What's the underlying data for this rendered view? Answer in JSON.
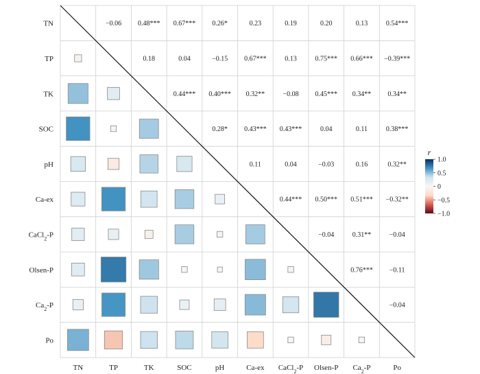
{
  "chart_data": {
    "type": "heatmap",
    "subtype": "correlation-matrix",
    "title": "",
    "variables": [
      "TN",
      "TP",
      "TK",
      "SOC",
      "pH",
      "Ca-ex",
      "CaCl2-P",
      "Olsen-P",
      "Ca2-P",
      "Po"
    ],
    "variable_labels": [
      {
        "base": "TN",
        "sub": "",
        "tail": ""
      },
      {
        "base": "TP",
        "sub": "",
        "tail": ""
      },
      {
        "base": "TK",
        "sub": "",
        "tail": ""
      },
      {
        "base": "SOC",
        "sub": "",
        "tail": ""
      },
      {
        "base": "pH",
        "sub": "",
        "tail": ""
      },
      {
        "base": "Ca-ex",
        "sub": "",
        "tail": ""
      },
      {
        "base": "CaCl",
        "sub": "2",
        "tail": "-P"
      },
      {
        "base": "Olsen-P",
        "sub": "",
        "tail": ""
      },
      {
        "base": "Ca",
        "sub": "2",
        "tail": "-P"
      },
      {
        "base": "Po",
        "sub": "",
        "tail": ""
      }
    ],
    "matrix": [
      [
        1,
        -0.06,
        0.48,
        0.67,
        0.26,
        0.23,
        0.19,
        0.2,
        0.13,
        0.54
      ],
      [
        -0.06,
        1,
        0.18,
        0.04,
        -0.15,
        0.67,
        0.13,
        0.75,
        0.66,
        -0.39
      ],
      [
        0.48,
        0.18,
        1,
        0.44,
        0.4,
        0.32,
        -0.08,
        0.45,
        0.34,
        0.34
      ],
      [
        0.67,
        0.04,
        0.44,
        1,
        0.28,
        0.43,
        0.43,
        0.04,
        0.11,
        0.38
      ],
      [
        0.26,
        -0.15,
        0.4,
        0.28,
        1,
        0.11,
        0.04,
        -0.03,
        0.16,
        0.32
      ],
      [
        0.23,
        0.67,
        0.32,
        0.43,
        0.11,
        1,
        0.44,
        0.5,
        0.51,
        -0.32
      ],
      [
        0.19,
        0.13,
        -0.08,
        0.43,
        0.04,
        0.44,
        1,
        -0.04,
        0.31,
        -0.04
      ],
      [
        0.2,
        0.75,
        0.45,
        0.04,
        -0.03,
        0.5,
        -0.04,
        1,
        0.76,
        -0.11
      ],
      [
        0.13,
        0.66,
        0.34,
        0.11,
        0.16,
        0.51,
        0.31,
        0.76,
        1,
        -0.04
      ],
      [
        0.54,
        -0.39,
        0.34,
        0.38,
        0.32,
        -0.32,
        -0.04,
        -0.11,
        -0.04,
        1
      ]
    ],
    "upper_labels": [
      [
        "",
        "−0.06",
        "0.48***",
        "0.67***",
        "0.26*",
        "0.23",
        "0.19",
        "0.20",
        "0.13",
        "0.54***"
      ],
      [
        "",
        "",
        "0.18",
        "0.04",
        "−0.15",
        "0.67***",
        "0.13",
        "0.75***",
        "0.66***",
        "−0.39***"
      ],
      [
        "",
        "",
        "",
        "0.44***",
        "0.40***",
        "0.32**",
        "−0.08",
        "0.45***",
        "0.34**",
        "0.34**"
      ],
      [
        "",
        "",
        "",
        "",
        "0.28*",
        "0.43***",
        "0.43***",
        "0.04",
        "0.11",
        "0.38***"
      ],
      [
        "",
        "",
        "",
        "",
        "",
        "0.11",
        "0.04",
        "−0.03",
        "0.16",
        "0.32**"
      ],
      [
        "",
        "",
        "",
        "",
        "",
        "",
        "0.44***",
        "0.50***",
        "0.51***",
        "−0.32**"
      ],
      [
        "",
        "",
        "",
        "",
        "",
        "",
        "",
        "−0.04",
        "0.31**",
        "−0.04"
      ],
      [
        "",
        "",
        "",
        "",
        "",
        "",
        "",
        "",
        "0.76***",
        "−0.11"
      ],
      [
        "",
        "",
        "",
        "",
        "",
        "",
        "",
        "",
        "",
        "−0.04"
      ],
      [
        "",
        "",
        "",
        "",
        "",
        "",
        "",
        "",
        "",
        ""
      ]
    ],
    "upper_triangle": "text",
    "lower_triangle": "squares",
    "diagonal": "line",
    "legend": {
      "title": "r",
      "range": [
        -1.0,
        1.0
      ],
      "ticks": [
        1.0,
        0.5,
        0,
        -0.5,
        -1.0
      ],
      "tick_labels": [
        "1.0",
        "0.5",
        "0",
        "−0.5",
        "−1.0"
      ],
      "placement": "right",
      "colors": [
        "#67001f",
        "#d6604d",
        "#fddbc7",
        "#f7f7f7",
        "#d1e5f0",
        "#4393c3",
        "#053061"
      ]
    },
    "grid": true
  }
}
